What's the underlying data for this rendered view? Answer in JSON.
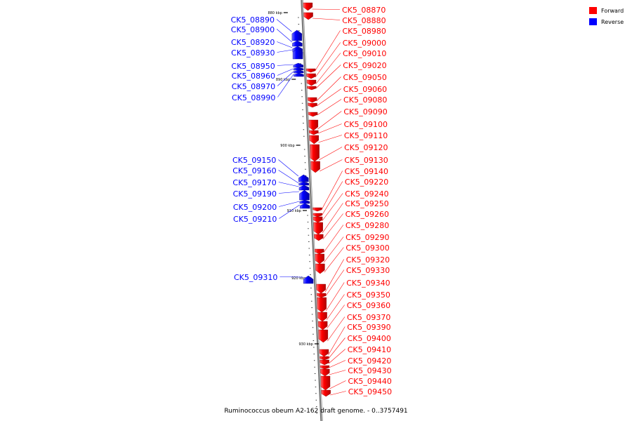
{
  "title": "Ruminococcus obeum A2-162 draft genome. - 0..3757491",
  "legend": [
    {
      "label": "Forward",
      "color": "#ff0000"
    },
    {
      "label": "Reverse",
      "color": "#0000ff"
    }
  ],
  "axis_ticks": [
    {
      "label": "880 kbp"
    },
    {
      "label": "890 kbp"
    },
    {
      "label": "900 kbp"
    },
    {
      "label": "910 kbp"
    },
    {
      "label": "920 kbp"
    },
    {
      "label": "930 kbp"
    }
  ],
  "forward_genes": [
    "CK5_08870",
    "CK5_08880",
    "CK5_08980",
    "CK5_09000",
    "CK5_09010",
    "CK5_09020",
    "CK5_09050",
    "CK5_09060",
    "CK5_09080",
    "CK5_09090",
    "CK5_09100",
    "CK5_09110",
    "CK5_09120",
    "CK5_09130",
    "CK5_09140",
    "CK5_09220",
    "CK5_09240",
    "CK5_09250",
    "CK5_09260",
    "CK5_09280",
    "CK5_09290",
    "CK5_09300",
    "CK5_09320",
    "CK5_09330",
    "CK5_09340",
    "CK5_09350",
    "CK5_09360",
    "CK5_09370",
    "CK5_09390",
    "CK5_09400",
    "CK5_09410",
    "CK5_09420",
    "CK5_09430",
    "CK5_09440",
    "CK5_09450"
  ],
  "reverse_genes": [
    "CK5_08890",
    "CK5_08900",
    "CK5_08920",
    "CK5_08930",
    "CK5_08950",
    "CK5_08960",
    "CK5_08970",
    "CK5_08990",
    "CK5_09150",
    "CK5_09160",
    "CK5_09170",
    "CK5_09190",
    "CK5_09200",
    "CK5_09210",
    "CK5_09310"
  ]
}
